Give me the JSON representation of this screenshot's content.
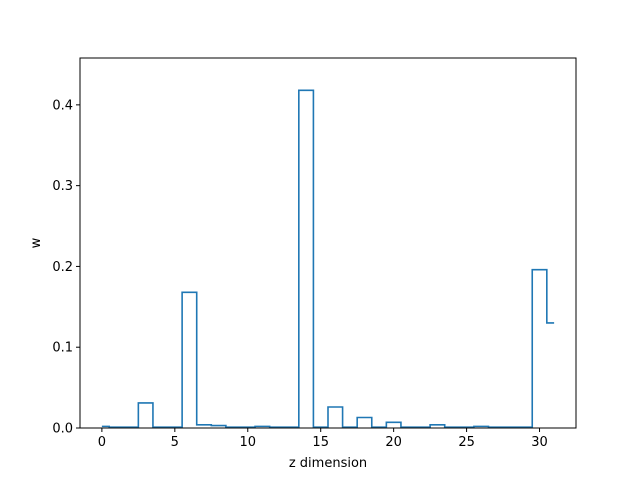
{
  "chart_data": {
    "type": "step",
    "title": "",
    "xlabel": "z dimension",
    "ylabel": "w",
    "xlim": [
      -1.5,
      32.5
    ],
    "ylim": [
      0,
      0.458
    ],
    "xticks": [
      0,
      5,
      10,
      15,
      20,
      25,
      30
    ],
    "yticks": [
      0.0,
      0.1,
      0.2,
      0.3,
      0.4
    ],
    "step_where": "mid",
    "series": [
      {
        "color": "#1f77b4",
        "x": [
          0,
          1,
          2,
          3,
          4,
          5,
          6,
          7,
          8,
          9,
          10,
          11,
          12,
          13,
          14,
          15,
          16,
          17,
          18,
          19,
          20,
          21,
          22,
          23,
          24,
          25,
          26,
          27,
          28,
          29,
          30,
          31
        ],
        "values": [
          0.002,
          0.001,
          0.001,
          0.031,
          0.001,
          0.001,
          0.168,
          0.004,
          0.003,
          0.001,
          0.001,
          0.002,
          0.001,
          0.001,
          0.418,
          0.001,
          0.026,
          0.001,
          0.013,
          0.001,
          0.007,
          0.001,
          0.001,
          0.004,
          0.001,
          0.001,
          0.002,
          0.001,
          0.001,
          0.001,
          0.196,
          0.13
        ]
      }
    ]
  }
}
